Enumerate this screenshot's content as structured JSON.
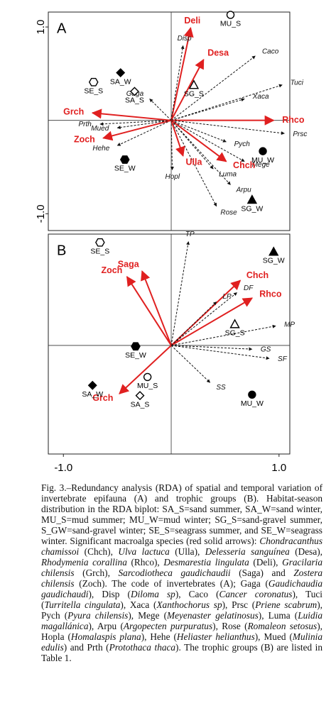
{
  "chart_data": [
    {
      "type": "biplot",
      "panel_label": "A",
      "xlim": [
        -1.14,
        1.1
      ],
      "ylim": [
        -1.18,
        1.16
      ],
      "yticks": [
        {
          "value": 1,
          "label": "1.0"
        },
        {
          "value": -1,
          "label": "-1.0"
        }
      ],
      "arrows": [
        {
          "label": "Deli",
          "x": 0.18,
          "y": 0.99,
          "color": "#e02020",
          "dashed": false
        },
        {
          "label": "Desa",
          "x": 0.3,
          "y": 0.65,
          "color": "#e02020",
          "dashed": false
        },
        {
          "label": "Disp",
          "x": 0.11,
          "y": 0.8,
          "color": "#111111",
          "dashed": true
        },
        {
          "label": "Caco",
          "x": 0.78,
          "y": 0.69,
          "color": "#111111",
          "dashed": true
        },
        {
          "label": "Tuci",
          "x": 1.03,
          "y": 0.38,
          "color": "#111111",
          "dashed": true
        },
        {
          "label": "Xaca",
          "x": 0.68,
          "y": 0.23,
          "color": "#111111",
          "dashed": true
        },
        {
          "label": "Rhco",
          "x": 0.95,
          "y": 0.0,
          "color": "#e02020",
          "dashed": false
        },
        {
          "label": "Prsc",
          "x": 1.05,
          "y": -0.14,
          "color": "#111111",
          "dashed": true
        },
        {
          "label": "Pych",
          "x": 0.51,
          "y": -0.23,
          "color": "#111111",
          "dashed": true
        },
        {
          "label": "Mege",
          "x": 0.68,
          "y": -0.44,
          "color": "#111111",
          "dashed": true
        },
        {
          "label": "Chch",
          "x": 0.51,
          "y": -0.44,
          "color": "#e02020",
          "dashed": false
        },
        {
          "label": "Luma",
          "x": 0.39,
          "y": -0.52,
          "color": "#111111",
          "dashed": true
        },
        {
          "label": "Arpu",
          "x": 0.55,
          "y": -0.69,
          "color": "#111111",
          "dashed": true
        },
        {
          "label": "Rose",
          "x": 0.42,
          "y": -0.92,
          "color": "#111111",
          "dashed": true
        },
        {
          "label": "Ulla",
          "x": 0.11,
          "y": -0.38,
          "color": "#e02020",
          "dashed": false
        },
        {
          "label": "Hopl",
          "x": 0.01,
          "y": -0.53,
          "color": "#111111",
          "dashed": true
        },
        {
          "label": "Hehe",
          "x": -0.5,
          "y": -0.27,
          "color": "#111111",
          "dashed": true
        },
        {
          "label": "Zoch",
          "x": -0.63,
          "y": -0.19,
          "color": "#e02020",
          "dashed": false
        },
        {
          "label": "Mued",
          "x": -0.5,
          "y": -0.08,
          "color": "#111111",
          "dashed": true
        },
        {
          "label": "Prth",
          "x": -0.66,
          "y": -0.04,
          "color": "#111111",
          "dashed": true
        },
        {
          "label": "Grch",
          "x": -0.73,
          "y": 0.08,
          "color": "#e02020",
          "dashed": false
        },
        {
          "label": "Gaga",
          "x": -0.2,
          "y": 0.23,
          "color": "#111111",
          "dashed": true
        }
      ],
      "sites": [
        {
          "label": "SA_W",
          "x": -0.47,
          "y": 0.51,
          "symbol": "diamond",
          "filled": true
        },
        {
          "label": "SA_S",
          "x": -0.34,
          "y": 0.31,
          "symbol": "diamond",
          "filled": false
        },
        {
          "label": "SE_S",
          "x": -0.72,
          "y": 0.41,
          "symbol": "hexagon",
          "filled": false
        },
        {
          "label": "SE_W",
          "x": -0.43,
          "y": -0.42,
          "symbol": "hexagon",
          "filled": true
        },
        {
          "label": "MU_S",
          "x": 0.55,
          "y": 1.13,
          "symbol": "circle",
          "filled": false
        },
        {
          "label": "MU_W",
          "x": 0.85,
          "y": -0.33,
          "symbol": "circle",
          "filled": true
        },
        {
          "label": "SG_S",
          "x": 0.21,
          "y": 0.38,
          "symbol": "triangle",
          "filled": false
        },
        {
          "label": "SG_W",
          "x": 0.75,
          "y": -0.85,
          "symbol": "triangle",
          "filled": true
        }
      ]
    },
    {
      "type": "biplot",
      "panel_label": "B",
      "xlim": [
        -1.14,
        1.1
      ],
      "ylim": [
        -1.17,
        1.2
      ],
      "xticks": [
        {
          "value": -1,
          "label": "-1.0"
        },
        {
          "value": 1,
          "label": "1.0"
        }
      ],
      "arrows": [
        {
          "label": "TP",
          "x": 0.16,
          "y": 1.12,
          "color": "#111111",
          "dashed": true
        },
        {
          "label": "Saga",
          "x": -0.27,
          "y": 0.8,
          "color": "#e02020",
          "dashed": false
        },
        {
          "label": "Zoch",
          "x": -0.41,
          "y": 0.74,
          "color": "#e02020",
          "dashed": false
        },
        {
          "label": "Chch",
          "x": 0.64,
          "y": 0.7,
          "color": "#e02020",
          "dashed": false
        },
        {
          "label": "DF",
          "x": 0.61,
          "y": 0.57,
          "color": "#111111",
          "dashed": true
        },
        {
          "label": "Rhco",
          "x": 0.75,
          "y": 0.51,
          "color": "#e02020",
          "dashed": false
        },
        {
          "label": "LP",
          "x": 0.42,
          "y": 0.47,
          "color": "#111111",
          "dashed": true
        },
        {
          "label": "MP",
          "x": 0.97,
          "y": 0.21,
          "color": "#111111",
          "dashed": true
        },
        {
          "label": "GS",
          "x": 0.75,
          "y": -0.04,
          "color": "#111111",
          "dashed": true
        },
        {
          "label": "SF",
          "x": 0.91,
          "y": -0.14,
          "color": "#111111",
          "dashed": true
        },
        {
          "label": "SS",
          "x": 0.36,
          "y": -0.4,
          "color": "#111111",
          "dashed": true
        },
        {
          "label": "Grch",
          "x": -0.48,
          "y": -0.52,
          "color": "#e02020",
          "dashed": false
        }
      ],
      "sites": [
        {
          "label": "SE_S",
          "x": -0.66,
          "y": 1.11,
          "symbol": "hexagon",
          "filled": false
        },
        {
          "label": "SG_W",
          "x": 0.95,
          "y": 1.01,
          "symbol": "triangle",
          "filled": true
        },
        {
          "label": "SG_S",
          "x": 0.59,
          "y": 0.23,
          "symbol": "triangle",
          "filled": false
        },
        {
          "label": "SE_W",
          "x": -0.33,
          "y": -0.01,
          "symbol": "hexagon",
          "filled": true
        },
        {
          "label": "MU_S",
          "x": -0.22,
          "y": -0.34,
          "symbol": "circle",
          "filled": false
        },
        {
          "label": "SA_W",
          "x": -0.73,
          "y": -0.43,
          "symbol": "diamond",
          "filled": true
        },
        {
          "label": "SA_S",
          "x": -0.29,
          "y": -0.54,
          "symbol": "diamond",
          "filled": false
        },
        {
          "label": "MU_W",
          "x": 0.75,
          "y": -0.53,
          "symbol": "circle",
          "filled": true
        }
      ]
    }
  ],
  "caption": {
    "runs": [
      {
        "text": "Fig. 3.‒Redundancy analysis (RDA) of spatial and temporal variation of invertebrate epifauna (A) and trophic groups (B). Habitat-season distribution in the RDA biplot: SA_S=sand summer, SA_W=sand winter, MU_S=mud summer; MU_W=mud winter; SG_S=sand-gravel summer, S_GW=sand-gravel winter; SE_S=seagrass summer, and SE_W=seagrass winter. Significant macroalga species (red solid arrows): ",
        "italic": false
      },
      {
        "text": "Chondracanthus chamissoi",
        "italic": true
      },
      {
        "text": " (Chch), ",
        "italic": false
      },
      {
        "text": "Ulva lactuca",
        "italic": true
      },
      {
        "text": " (Ulla), ",
        "italic": false
      },
      {
        "text": "Delesseria sanguínea",
        "italic": true
      },
      {
        "text": " (Desa), ",
        "italic": false
      },
      {
        "text": "Rhodymenia corallina",
        "italic": true
      },
      {
        "text": " (Rhco), ",
        "italic": false
      },
      {
        "text": "Desmarestia lingulata",
        "italic": true
      },
      {
        "text": " (Deli), ",
        "italic": false
      },
      {
        "text": "Gracilaria chilensis",
        "italic": true
      },
      {
        "text": " (Grch), ",
        "italic": false
      },
      {
        "text": "Sarcodiotheca gaudichaudii",
        "italic": true
      },
      {
        "text": " (Saga) and ",
        "italic": false
      },
      {
        "text": "Zostera chilensis",
        "italic": true
      },
      {
        "text": " (Zoch). The code of invertebrates (A); Gaga (",
        "italic": false
      },
      {
        "text": "Gaudichaudia gaudichaudi",
        "italic": true
      },
      {
        "text": "), Disp (",
        "italic": false
      },
      {
        "text": "Diloma sp",
        "italic": true
      },
      {
        "text": "), Caco (",
        "italic": false
      },
      {
        "text": "Cancer coronatus",
        "italic": true
      },
      {
        "text": "), Tuci (",
        "italic": false
      },
      {
        "text": "Turritella cingulata",
        "italic": true
      },
      {
        "text": "), Xaca (",
        "italic": false
      },
      {
        "text": "Xanthochorus sp",
        "italic": true
      },
      {
        "text": "), Prsc (",
        "italic": false
      },
      {
        "text": "Priene scabrum",
        "italic": true
      },
      {
        "text": "), Pych (",
        "italic": false
      },
      {
        "text": "Pyura chilensis",
        "italic": true
      },
      {
        "text": "), Mege (",
        "italic": false
      },
      {
        "text": "Meyenaster gelatinosus",
        "italic": true
      },
      {
        "text": "), Luma (",
        "italic": false
      },
      {
        "text": "Luidia magallánica",
        "italic": true
      },
      {
        "text": "), Arpu (",
        "italic": false
      },
      {
        "text": "Argopecten purpuratus",
        "italic": true
      },
      {
        "text": "), Rose (",
        "italic": false
      },
      {
        "text": "Romaleon setosus",
        "italic": true
      },
      {
        "text": "), Hopla (",
        "italic": false
      },
      {
        "text": "Homalaspis plana",
        "italic": true
      },
      {
        "text": "), Hehe (",
        "italic": false
      },
      {
        "text": "Heliaster helianthus",
        "italic": true
      },
      {
        "text": "), Mued (",
        "italic": false
      },
      {
        "text": "Mulinia edulis",
        "italic": true
      },
      {
        "text": ") and Prth (",
        "italic": false
      },
      {
        "text": "Protothaca thaca",
        "italic": true
      },
      {
        "text": "). The trophic groups (B) are listed in Table 1.",
        "italic": false
      }
    ]
  }
}
